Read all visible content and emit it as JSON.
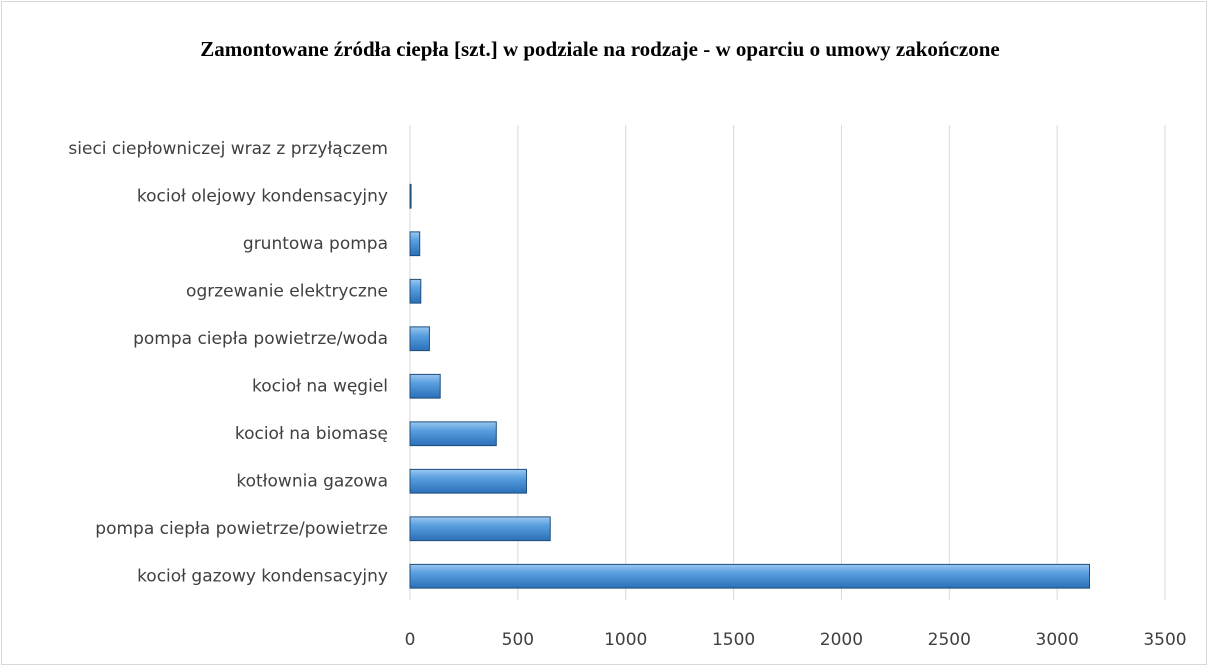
{
  "chart_data": {
    "type": "barh",
    "title": "Zamontowane źródła ciepła [szt.] w podziale na rodzaje - w oparciu o umowy zakończone",
    "categories": [
      "sieci ciepłowniczej wraz z przyłączem",
      "kocioł olejowy kondensacyjny",
      "gruntowa pompa",
      "ogrzewanie elektryczne",
      "pompa ciepła powietrze/woda",
      "kocioł na węgiel",
      "kocioł na biomasę",
      "kotłownia gazowa",
      "pompa ciepła powietrze/powietrze",
      "kocioł gazowy kondensacyjny"
    ],
    "values": [
      0,
      5,
      45,
      50,
      90,
      140,
      400,
      540,
      650,
      3150
    ],
    "color": "#4a90d9",
    "xlim": [
      0,
      3500
    ],
    "xticks": [
      0,
      500,
      1000,
      1500,
      2000,
      2500,
      3000,
      3500
    ],
    "grid": true
  }
}
